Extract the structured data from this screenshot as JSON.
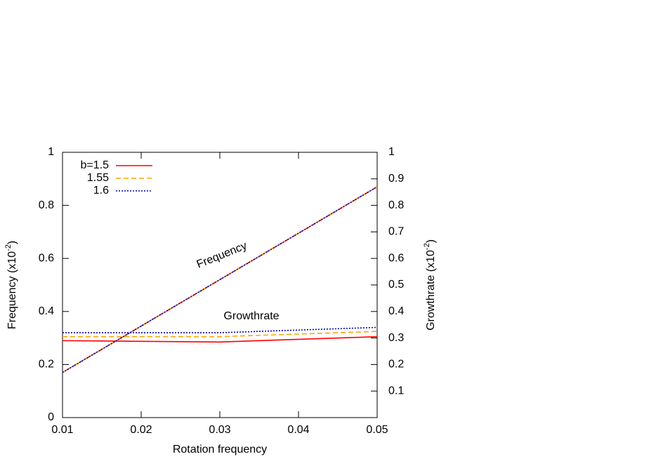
{
  "chart_data": {
    "type": "line",
    "xlabel": "Rotation frequency",
    "ylabel": [
      "Frequency (x10",
      "-2",
      ")"
    ],
    "y2label": [
      "Growthrate (x10",
      "-2",
      ")"
    ],
    "annotations": [
      "Frequency",
      "Growthrate"
    ],
    "x": [
      0.01,
      0.03,
      0.05
    ],
    "series": [
      {
        "name": "b=1.5",
        "color": "#ff0000",
        "dash": "solid",
        "frequency": [
          0.17,
          0.52,
          0.87
        ],
        "growthrate": [
          0.29,
          0.285,
          0.305
        ]
      },
      {
        "name": "1.55",
        "color": "#ffa500",
        "dash": "dashed",
        "frequency": [
          0.17,
          0.52,
          0.87
        ],
        "growthrate": [
          0.305,
          0.305,
          0.325
        ]
      },
      {
        "name": "1.6",
        "color": "#0000cd",
        "dash": "dotted",
        "frequency": [
          0.17,
          0.52,
          0.87
        ],
        "growthrate": [
          0.32,
          0.32,
          0.34
        ]
      }
    ],
    "xlim": [
      0.01,
      0.05
    ],
    "xticks": [
      0.01,
      0.02,
      0.03,
      0.04,
      0.05
    ],
    "ylim": [
      0,
      1
    ],
    "yticks": [
      0,
      0.2,
      0.4,
      0.6,
      0.8,
      1
    ],
    "y2lim": [
      0,
      1
    ],
    "y2ticks": [
      0.1,
      0.2,
      0.3,
      0.4,
      0.5,
      0.6,
      0.7,
      0.8,
      0.9,
      1
    ],
    "legend": "top-left"
  }
}
